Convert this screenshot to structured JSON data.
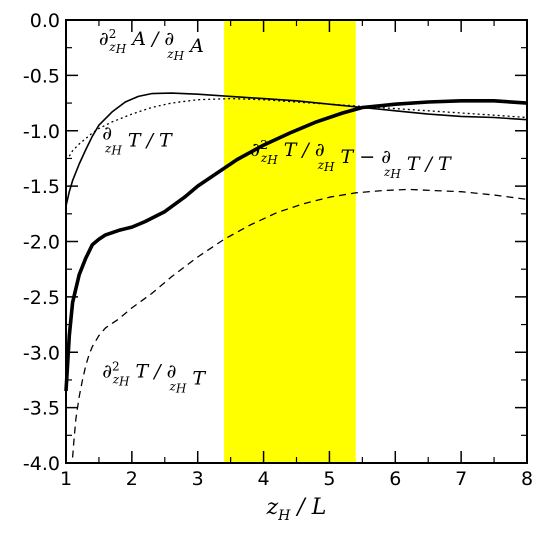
{
  "chart_data": {
    "type": "line",
    "title": "",
    "xlabel": "z_H / L",
    "ylabel": "",
    "xlim": [
      1,
      8
    ],
    "ylim": [
      -4.0,
      0.0
    ],
    "xticks": [
      1,
      2,
      3,
      4,
      5,
      6,
      7,
      8
    ],
    "yticks": [
      0.0,
      -0.5,
      -1.0,
      -1.5,
      -2.0,
      -2.5,
      -3.0,
      -3.5,
      -4.0
    ],
    "xtick_labels": [
      "1",
      "2",
      "3",
      "4",
      "5",
      "6",
      "7",
      "8"
    ],
    "ytick_labels": [
      "0.0",
      "-0.5",
      "-1.0",
      "-1.5",
      "-2.0",
      "-2.5",
      "-3.0",
      "-3.5",
      "-4.0"
    ],
    "grid": false,
    "highlight_band": {
      "x": [
        3.4,
        5.4
      ],
      "color": "#ffff00"
    },
    "annotations": [
      {
        "key": "a1",
        "base": "∂",
        "sup": "2",
        "parts": [
          [
            "∂",
            "n"
          ],
          [
            "2",
            "sup"
          ],
          [
            "z",
            "sub"
          ],
          [
            "H",
            "subsub"
          ],
          [
            " A / ∂",
            "n"
          ],
          [
            "z",
            "sub"
          ],
          [
            "H",
            "subsub"
          ],
          [
            " A",
            "n"
          ]
        ],
        "at": [
          1.5,
          -0.3
        ]
      },
      {
        "key": "a2",
        "parts": [
          [
            "∂",
            "n"
          ],
          [
            "z",
            "sub"
          ],
          [
            "H",
            "subsub"
          ],
          [
            " T / T",
            "n"
          ]
        ],
        "at": [
          1.55,
          -1.15
        ]
      },
      {
        "key": "a3",
        "parts": [
          [
            "∂",
            "n"
          ],
          [
            "2",
            "sup"
          ],
          [
            "z",
            "sub"
          ],
          [
            "H",
            "subsub"
          ],
          [
            " T / ∂",
            "n"
          ],
          [
            "z",
            "sub"
          ],
          [
            "H",
            "subsub"
          ],
          [
            " T − ∂",
            "n"
          ],
          [
            "z",
            "sub"
          ],
          [
            "H",
            "subsub"
          ],
          [
            " T / T",
            "n"
          ]
        ],
        "at": [
          3.8,
          -1.3
        ]
      },
      {
        "key": "a4",
        "parts": [
          [
            "∂",
            "n"
          ],
          [
            "2",
            "sup"
          ],
          [
            "z",
            "sub"
          ],
          [
            "H",
            "subsub"
          ],
          [
            " T / ∂",
            "n"
          ],
          [
            "z",
            "sub"
          ],
          [
            "H",
            "subsub"
          ],
          [
            " T",
            "n"
          ]
        ],
        "at": [
          1.55,
          -3.3
        ]
      }
    ],
    "series": [
      {
        "key": "s_thin",
        "style": "solid-thin",
        "x": [
          1.0,
          1.05,
          1.1,
          1.2,
          1.3,
          1.4,
          1.5,
          1.7,
          1.9,
          2.1,
          2.3,
          2.6,
          3.0,
          3.5,
          4.0,
          4.5,
          5.0,
          5.5,
          6.0,
          6.5,
          7.0,
          7.5,
          8.0
        ],
        "y": [
          -1.68,
          -1.55,
          -1.45,
          -1.3,
          -1.17,
          -1.05,
          -0.95,
          -0.83,
          -0.74,
          -0.69,
          -0.665,
          -0.66,
          -0.67,
          -0.69,
          -0.71,
          -0.73,
          -0.76,
          -0.79,
          -0.82,
          -0.85,
          -0.87,
          -0.88,
          -0.9
        ]
      },
      {
        "key": "s_dotted",
        "style": "dotted",
        "x": [
          1.05,
          1.1,
          1.2,
          1.3,
          1.4,
          1.5,
          1.7,
          2.0,
          2.3,
          2.6,
          3.0,
          3.5,
          4.0,
          4.5,
          5.0,
          5.5,
          6.0,
          6.5,
          7.0,
          7.5,
          8.0
        ],
        "y": [
          -1.23,
          -1.18,
          -1.12,
          -1.07,
          -1.02,
          -0.98,
          -0.92,
          -0.85,
          -0.79,
          -0.75,
          -0.72,
          -0.71,
          -0.72,
          -0.74,
          -0.76,
          -0.78,
          -0.8,
          -0.82,
          -0.84,
          -0.86,
          -0.88
        ]
      },
      {
        "key": "s_thick",
        "style": "solid-thick",
        "x": [
          1.0,
          1.05,
          1.1,
          1.2,
          1.3,
          1.4,
          1.5,
          1.6,
          1.8,
          2.0,
          2.2,
          2.5,
          2.8,
          3.0,
          3.3,
          3.6,
          4.0,
          4.4,
          4.8,
          5.2,
          5.5,
          6.0,
          6.5,
          7.0,
          7.5,
          8.0
        ],
        "y": [
          -3.35,
          -2.85,
          -2.55,
          -2.3,
          -2.15,
          -2.03,
          -1.98,
          -1.94,
          -1.9,
          -1.87,
          -1.82,
          -1.73,
          -1.6,
          -1.5,
          -1.38,
          -1.26,
          -1.13,
          -1.02,
          -0.92,
          -0.84,
          -0.79,
          -0.76,
          -0.74,
          -0.73,
          -0.73,
          -0.75
        ]
      },
      {
        "key": "s_dashed",
        "style": "dashed",
        "x": [
          1.1,
          1.12,
          1.15,
          1.2,
          1.25,
          1.3,
          1.35,
          1.4,
          1.5,
          1.6,
          1.8,
          2.0,
          2.3,
          2.6,
          3.0,
          3.4,
          3.8,
          4.2,
          4.6,
          5.0,
          5.4,
          5.8,
          6.2,
          6.6,
          7.0,
          7.5,
          8.0
        ],
        "y": [
          -3.95,
          -3.8,
          -3.6,
          -3.4,
          -3.25,
          -3.12,
          -3.02,
          -2.95,
          -2.85,
          -2.78,
          -2.7,
          -2.6,
          -2.47,
          -2.32,
          -2.14,
          -1.98,
          -1.85,
          -1.74,
          -1.66,
          -1.6,
          -1.56,
          -1.54,
          -1.53,
          -1.54,
          -1.55,
          -1.58,
          -1.62
        ]
      }
    ]
  }
}
